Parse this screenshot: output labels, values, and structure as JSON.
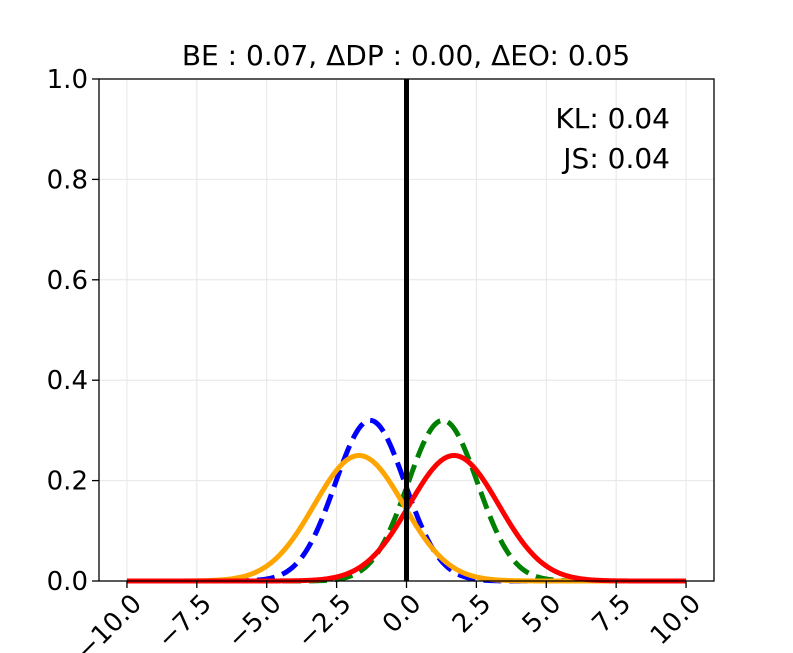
{
  "chart_data": {
    "type": "line",
    "title": "BE : 0.07, ΔDP : 0.00, ΔEO: 0.05",
    "xlabel": "",
    "ylabel": "",
    "xlim": [
      -10.0,
      10.0
    ],
    "ylim": [
      0.0,
      1.0
    ],
    "xticks": [
      "−10.0",
      "−7.5",
      "−5.0",
      "−2.5",
      "0.0",
      "2.5",
      "5.0",
      "7.5",
      "10.0"
    ],
    "xtick_values": [
      -10.0,
      -7.5,
      -5.0,
      -2.5,
      0.0,
      2.5,
      5.0,
      7.5,
      10.0
    ],
    "yticks": [
      "0.0",
      "0.2",
      "0.4",
      "0.6",
      "0.8",
      "1.0"
    ],
    "ytick_values": [
      0.0,
      0.2,
      0.4,
      0.6,
      0.8,
      1.0
    ],
    "grid": true,
    "annotations": [
      "KL: 0.04",
      "JS: 0.04"
    ],
    "annotation_placement": "top-right",
    "threshold_line": {
      "x": 0.0,
      "color": "#000000"
    },
    "series": [
      {
        "color": "#0000ff",
        "style": "dashed",
        "distribution": "gaussian",
        "mean": -1.3,
        "std": 1.25,
        "peak": 0.32
      },
      {
        "color": "#008000",
        "style": "dashed",
        "distribution": "gaussian",
        "mean": 1.3,
        "std": 1.25,
        "peak": 0.32
      },
      {
        "color": "#ffa500",
        "style": "solid",
        "distribution": "gaussian",
        "mean": -1.7,
        "std": 1.6,
        "peak": 0.25
      },
      {
        "color": "#ff0000",
        "style": "solid",
        "distribution": "gaussian",
        "mean": 1.7,
        "std": 1.6,
        "peak": 0.25
      }
    ]
  }
}
